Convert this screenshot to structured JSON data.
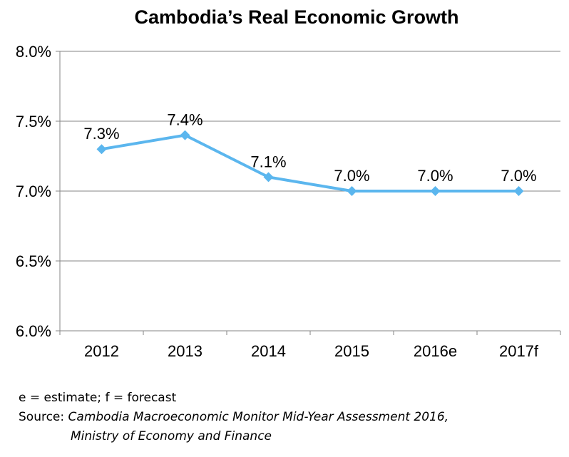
{
  "chart_data": {
    "type": "line",
    "title": "Cambodia’s Real Economic Growth",
    "categories": [
      "2012",
      "2013",
      "2014",
      "2015",
      "2016e",
      "2017f"
    ],
    "series": [
      {
        "values": [
          7.3,
          7.4,
          7.1,
          7.0,
          7.0,
          7.0
        ],
        "labels": [
          "7.3%",
          "7.4%",
          "7.1%",
          "7.0%",
          "7.0%",
          "7.0%"
        ],
        "color": "#5bb6ee",
        "marker": "diamond"
      }
    ],
    "ylim": [
      6.0,
      8.0
    ],
    "yticks": [
      6.0,
      6.5,
      7.0,
      7.5,
      8.0
    ],
    "ytick_labels": [
      "6.0%",
      "6.5%",
      "7.0%",
      "7.5%",
      "8.0%"
    ],
    "grid": "horizontal",
    "legend": "none",
    "xlabel": "",
    "ylabel": ""
  },
  "notes": {
    "legend_note": "e = estimate; f = forecast",
    "source_prefix": "Source: ",
    "source_line1": "Cambodia Macroeconomic Monitor Mid-Year Assessment 2016,",
    "source_line2": "Ministry of Economy and Finance"
  },
  "colors": {
    "grid": "#868686",
    "axis": "#868686"
  }
}
